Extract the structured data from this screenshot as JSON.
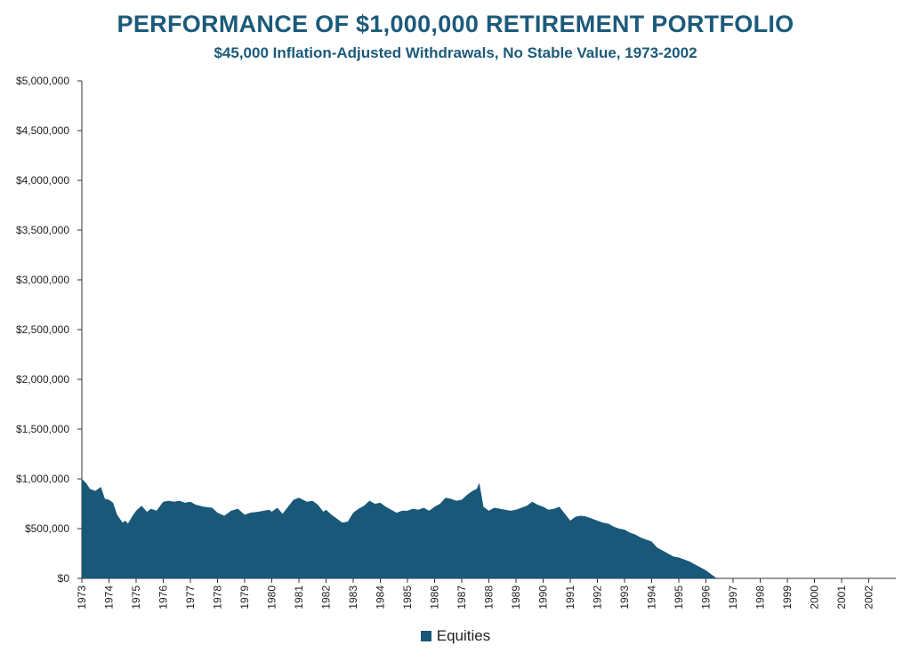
{
  "colors": {
    "title": "#1c5a7a",
    "series": "#195878",
    "axis": "#333333"
  },
  "chart_data": {
    "type": "area",
    "title": "PERFORMANCE OF $1,000,000 RETIREMENT PORTFOLIO",
    "subtitle": "$45,000 Inflation-Adjusted Withdrawals, No Stable Value, 1973-2002",
    "xlabel": "",
    "ylabel": "",
    "xlim": [
      1973,
      2003
    ],
    "ylim": [
      0,
      5000000
    ],
    "x_tick_labels": [
      "1973",
      "1974",
      "1975",
      "1976",
      "1977",
      "1978",
      "1979",
      "1980",
      "1981",
      "1982",
      "1983",
      "1984",
      "1985",
      "1986",
      "1987",
      "1988",
      "1989",
      "1990",
      "1991",
      "1992",
      "1993",
      "1994",
      "1995",
      "1996",
      "1997",
      "1998",
      "1999",
      "2000",
      "2001",
      "2002"
    ],
    "y_tick_labels": [
      "$0",
      "$500,000",
      "$1,000,000",
      "$1,500,000",
      "$2,000,000",
      "$2,500,000",
      "$3,000,000",
      "$3,500,000",
      "$4,000,000",
      "$4,500,000",
      "$5,000,000"
    ],
    "grid": false,
    "legend_position": "bottom",
    "series": [
      {
        "name": "Equities",
        "x": [
          1973.0,
          1973.15,
          1973.3,
          1973.5,
          1973.7,
          1973.85,
          1974.0,
          1974.15,
          1974.3,
          1974.5,
          1974.6,
          1974.7,
          1974.85,
          1975.0,
          1975.2,
          1975.4,
          1975.55,
          1975.75,
          1976.0,
          1976.2,
          1976.4,
          1976.6,
          1976.8,
          1977.0,
          1977.2,
          1977.5,
          1977.8,
          1978.0,
          1978.25,
          1978.5,
          1978.75,
          1979.0,
          1979.2,
          1979.5,
          1979.7,
          1979.9,
          1980.0,
          1980.1,
          1980.2,
          1980.4,
          1980.6,
          1980.8,
          1981.0,
          1981.15,
          1981.3,
          1981.5,
          1981.7,
          1981.9,
          1982.0,
          1982.2,
          1982.4,
          1982.6,
          1982.8,
          1983.0,
          1983.2,
          1983.4,
          1983.6,
          1983.8,
          1984.0,
          1984.2,
          1984.4,
          1984.6,
          1984.8,
          1985.0,
          1985.2,
          1985.4,
          1985.6,
          1985.8,
          1986.0,
          1986.2,
          1986.4,
          1986.6,
          1986.8,
          1987.0,
          1987.2,
          1987.4,
          1987.55,
          1987.65,
          1987.8,
          1988.0,
          1988.2,
          1988.4,
          1988.6,
          1988.8,
          1989.0,
          1989.2,
          1989.4,
          1989.6,
          1989.8,
          1990.0,
          1990.2,
          1990.4,
          1990.6,
          1990.8,
          1991.0,
          1991.2,
          1991.4,
          1991.6,
          1991.8,
          1992.0,
          1992.2,
          1992.4,
          1992.6,
          1992.8,
          1993.0,
          1993.2,
          1993.4,
          1993.6,
          1993.8,
          1994.0,
          1994.2,
          1994.4,
          1994.6,
          1994.8,
          1995.0,
          1995.2,
          1995.4,
          1995.6,
          1995.8,
          1996.0,
          1996.2,
          1996.4,
          1996.6,
          1996.8
        ],
        "values": [
          1000000,
          960000,
          900000,
          880000,
          920000,
          800000,
          790000,
          760000,
          640000,
          560000,
          580000,
          550000,
          620000,
          680000,
          730000,
          670000,
          700000,
          680000,
          770000,
          780000,
          770000,
          780000,
          760000,
          770000,
          740000,
          720000,
          710000,
          660000,
          630000,
          680000,
          700000,
          640000,
          660000,
          670000,
          680000,
          690000,
          670000,
          690000,
          710000,
          650000,
          720000,
          790000,
          810000,
          790000,
          770000,
          780000,
          740000,
          670000,
          690000,
          640000,
          600000,
          560000,
          570000,
          660000,
          700000,
          730000,
          780000,
          750000,
          760000,
          720000,
          690000,
          660000,
          680000,
          680000,
          700000,
          690000,
          710000,
          680000,
          720000,
          750000,
          810000,
          800000,
          780000,
          790000,
          840000,
          880000,
          900000,
          960000,
          720000,
          680000,
          710000,
          700000,
          690000,
          680000,
          690000,
          710000,
          730000,
          770000,
          740000,
          720000,
          690000,
          700000,
          720000,
          650000,
          580000,
          620000,
          630000,
          620000,
          600000,
          580000,
          560000,
          550000,
          520000,
          500000,
          490000,
          460000,
          440000,
          410000,
          390000,
          370000,
          310000,
          280000,
          250000,
          220000,
          210000,
          190000,
          170000,
          140000,
          110000,
          80000,
          40000,
          0,
          0,
          0
        ]
      }
    ]
  },
  "legend": {
    "label": "Equities"
  }
}
